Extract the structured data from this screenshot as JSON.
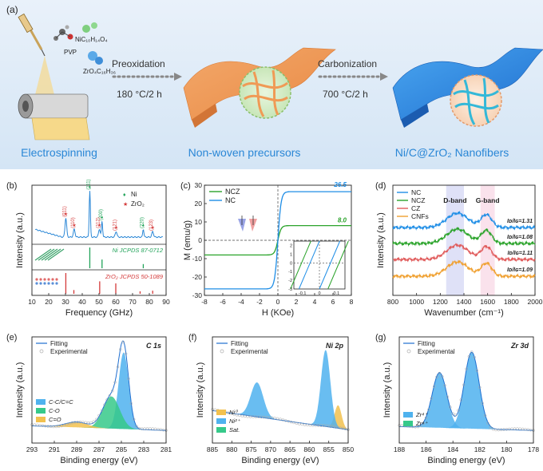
{
  "panel_a": {
    "letter": "(a)",
    "ni_reagent": "NiC₁₀H₁₄O₄",
    "pvp": "PVP",
    "zr_reagent": "ZrO₄C₁₆H₃₆",
    "step1_name": "Preoxidation",
    "step1_cond": "180 °C/2 h",
    "step2_name": "Carbonization",
    "step2_cond": "700 °C/2 h",
    "caption1": "Electrospinning",
    "caption2": "Non-woven precursors",
    "caption3": "Ni/C@ZrO₂ Nanofibers",
    "colors": {
      "accent_blue": "#2a87d6",
      "bg_blue": "#dceaf8"
    }
  },
  "chart_data": [
    {
      "panel": "(b)",
      "type": "line",
      "xlabel": "Frequency (GHz)",
      "ylabel": "Intensity (a.u.)",
      "xlim": [
        10,
        90
      ],
      "xticks": [
        10,
        20,
        30,
        40,
        50,
        60,
        70,
        80,
        90
      ],
      "legend": [
        "Ni",
        "ZrO₂"
      ],
      "peaks_ni": [
        {
          "x": 44.5,
          "label": "(111)"
        },
        {
          "x": 51.8,
          "label": "(200)"
        },
        {
          "x": 76.4,
          "label": "(220)"
        }
      ],
      "peaks_zr": [
        {
          "x": 30.2,
          "label": "(011)"
        },
        {
          "x": 35.2,
          "label": "(110)"
        },
        {
          "x": 50.2,
          "label": "(112)"
        },
        {
          "x": 60.2,
          "label": "(121)"
        },
        {
          "x": 82.0,
          "label": "(123)"
        }
      ],
      "ref_ni": "Ni JCPDS 87-0712",
      "ref_zr": "ZrO₂ JCPDS 50-1089",
      "ref_ni_lines": [
        {
          "x": 44.5,
          "h": 1.0
        },
        {
          "x": 51.8,
          "h": 0.42
        },
        {
          "x": 76.4,
          "h": 0.2
        }
      ],
      "ref_zr_lines": [
        {
          "x": 30.2,
          "h": 1.0
        },
        {
          "x": 35.0,
          "h": 0.18
        },
        {
          "x": 50.4,
          "h": 0.6
        },
        {
          "x": 60.0,
          "h": 0.5
        },
        {
          "x": 74.5,
          "h": 0.12
        },
        {
          "x": 82.0,
          "h": 0.15
        }
      ]
    },
    {
      "panel": "(c)",
      "type": "line",
      "xlabel": "H (KOe)",
      "ylabel": "M (emu/g)",
      "xlim": [
        -8,
        8
      ],
      "ylim": [
        -30,
        30
      ],
      "xticks": [
        -8,
        -6,
        -4,
        -2,
        0,
        2,
        4,
        6,
        8
      ],
      "yticks": [
        -30,
        -20,
        -10,
        0,
        10,
        20,
        30
      ],
      "series": [
        {
          "name": "NCZ",
          "ms": 8.0,
          "label": "8.0"
        },
        {
          "name": "NC",
          "ms": 26.5,
          "label": "26.5"
        }
      ],
      "inset": {
        "xticks": [
          -0.1,
          0.0,
          0.1
        ],
        "yticks": [
          2,
          1,
          0,
          -1,
          -2,
          -3
        ]
      }
    },
    {
      "panel": "(d)",
      "type": "line",
      "xlabel": "Wavenumber (cm⁻¹)",
      "ylabel": "Intensity (a.u.)",
      "xlim": [
        800,
        2000
      ],
      "xticks": [
        800,
        1000,
        1200,
        1400,
        1600,
        1800,
        2000
      ],
      "bands": [
        "D-band",
        "G-band"
      ],
      "series": [
        {
          "name": "NC",
          "ratio": "Iᴅ/Iɢ=1.31"
        },
        {
          "name": "NCZ",
          "ratio": "Iᴅ/Iɢ=1.08"
        },
        {
          "name": "CZ",
          "ratio": "Iᴅ/Iɢ=1.11"
        },
        {
          "name": "CNFs",
          "ratio": "Iᴅ/Iɢ=1.09"
        }
      ]
    },
    {
      "panel": "(e)",
      "type": "area",
      "element": "C 1s",
      "xlabel": "Binding energy (eV)",
      "ylabel": "Intensity (a.u.)",
      "xlim": [
        293,
        281
      ],
      "xticks": [
        293,
        291,
        289,
        287,
        285,
        283,
        281
      ],
      "legend_top": [
        "Fitting",
        "Experimental"
      ],
      "components": [
        {
          "name": "C-C/C=C",
          "center": 284.8,
          "amp": 1.0
        },
        {
          "name": "C-O",
          "center": 285.9,
          "amp": 0.42
        },
        {
          "name": "C=O",
          "center": 289.0,
          "amp": 0.07
        }
      ]
    },
    {
      "panel": "(f)",
      "type": "area",
      "element": "Ni 2p",
      "xlabel": "Binding energy (eV)",
      "ylabel": "Intensity (a.u.)",
      "xlim": [
        885,
        850
      ],
      "xticks": [
        885,
        880,
        875,
        870,
        865,
        860,
        855,
        850
      ],
      "legend_top": [
        "Fitting",
        "Experimental"
      ],
      "legend_bottom": [
        "Ni⁰",
        "Ni²⁺",
        "Sat."
      ],
      "components": [
        {
          "name": "Ni⁰",
          "center": 852.6,
          "amp": 0.3
        },
        {
          "name": "Ni²⁺",
          "center": 855.8,
          "amp": 1.0
        },
        {
          "name": "Ni²⁺",
          "center": 873.5,
          "amp": 0.45
        },
        {
          "name": "Sat.",
          "center": 861.3,
          "amp": 0.55
        },
        {
          "name": "Sat.",
          "center": 880.0,
          "amp": 0.25
        }
      ]
    },
    {
      "panel": "(g)",
      "type": "area",
      "element": "Zr 3d",
      "xlabel": "Binding energy (eV)",
      "ylabel": "Intensity (a.u.)",
      "xlim": [
        188,
        178
      ],
      "xticks": [
        188,
        186,
        184,
        182,
        180,
        178
      ],
      "legend_top": [
        "Fitting",
        "Experimental"
      ],
      "legend_bottom": [
        "Zr⁴⁺",
        "Zr⁴⁺"
      ],
      "components": [
        {
          "name": "Zr⁴⁺ 3d3/2",
          "center": 185.0,
          "amp": 0.72
        },
        {
          "name": "Zr⁴⁺ 3d5/2",
          "center": 182.6,
          "amp": 1.0
        }
      ]
    }
  ]
}
